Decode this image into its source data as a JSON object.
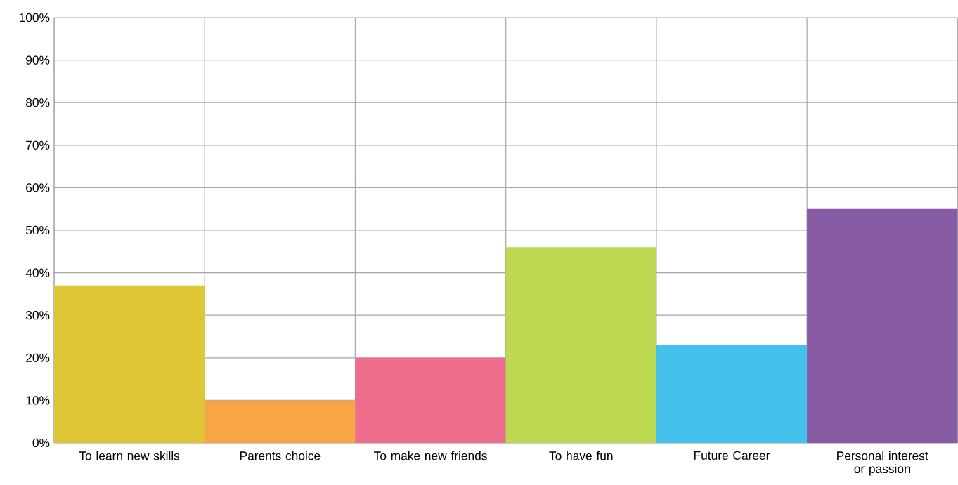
{
  "chart_data": {
    "type": "bar",
    "categories": [
      "To learn new skills",
      "Parents choice",
      "To make new friends",
      "To have fun",
      "Future Career",
      "Personal interest or passion"
    ],
    "values": [
      37,
      10,
      20,
      46,
      23,
      55
    ],
    "colors": [
      "#dfc636",
      "#f8a548",
      "#ef6d8c",
      "#bdd952",
      "#43c1ec",
      "#875ca5"
    ],
    "ylim": [
      0,
      100
    ],
    "yticks": [
      {
        "value": 0,
        "label": "0%"
      },
      {
        "value": 10,
        "label": "10%"
      },
      {
        "value": 20,
        "label": "20%"
      },
      {
        "value": 30,
        "label": "30%"
      },
      {
        "value": 40,
        "label": "40%"
      },
      {
        "value": 50,
        "label": "50%"
      },
      {
        "value": 60,
        "label": "60%"
      },
      {
        "value": 70,
        "label": "70%"
      },
      {
        "value": 80,
        "label": "80%"
      },
      {
        "value": 90,
        "label": "90%"
      },
      {
        "value": 100,
        "label": "100%"
      }
    ],
    "grid": true
  }
}
